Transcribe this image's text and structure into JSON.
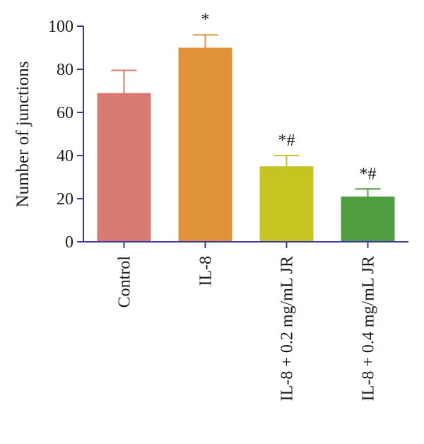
{
  "chart_data": {
    "type": "bar",
    "ylabel": "Number of junctions",
    "xlabel": "",
    "ylim": [
      0,
      100
    ],
    "yticks": [
      0,
      20,
      40,
      60,
      80,
      100
    ],
    "categories": [
      "Control",
      "IL-8",
      "IL-8 + 0.2 mg/mL JR",
      "IL-8 + 0.4 mg/mL JR"
    ],
    "values": [
      69,
      90,
      35,
      21
    ],
    "error_upper": [
      79.5,
      96,
      40,
      24.5
    ],
    "annotations": [
      "",
      "*",
      "*#",
      "*#"
    ],
    "colors": [
      "#d87a72",
      "#e09338",
      "#c5c421",
      "#4f9f40"
    ],
    "axis_color": "#3f37a0"
  }
}
